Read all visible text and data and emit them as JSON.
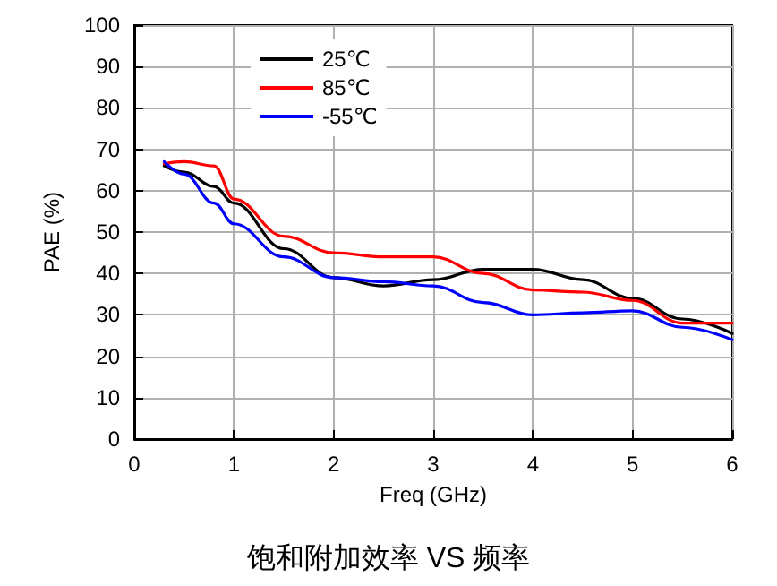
{
  "chart_data": {
    "type": "line",
    "title": "饱和附加效率 VS 频率",
    "xlabel": "Freq (GHz)",
    "ylabel": "PAE (%)",
    "x": [
      0.3,
      0.5,
      0.8,
      1,
      1.5,
      2,
      2.5,
      3,
      3.5,
      4,
      4.5,
      5,
      5.5,
      6
    ],
    "series": [
      {
        "name": "25℃",
        "color": "#000000",
        "values": [
          66,
          64.5,
          61,
          57,
          46,
          39,
          37,
          38.5,
          41,
          41,
          38.5,
          34,
          29,
          25.5
        ]
      },
      {
        "name": "85℃",
        "color": "#ff0000",
        "values": [
          66.5,
          67,
          66,
          58,
          49,
          45,
          44,
          44,
          40,
          36,
          35.5,
          33.5,
          28,
          28
        ]
      },
      {
        "name": "-55℃",
        "color": "#0000ff",
        "values": [
          67,
          64,
          57,
          52,
          44,
          39,
          38,
          37,
          33,
          30,
          30.5,
          31,
          27,
          24
        ]
      }
    ],
    "xlim": [
      0,
      6
    ],
    "xticks": [
      0,
      1,
      2,
      3,
      4,
      5,
      6
    ],
    "ylim": [
      0,
      100
    ],
    "yticks": [
      0,
      10,
      20,
      30,
      40,
      50,
      60,
      70,
      80,
      90,
      100
    ],
    "grid": true,
    "legend": "top left",
    "marker": "none",
    "line_style": "solid"
  }
}
